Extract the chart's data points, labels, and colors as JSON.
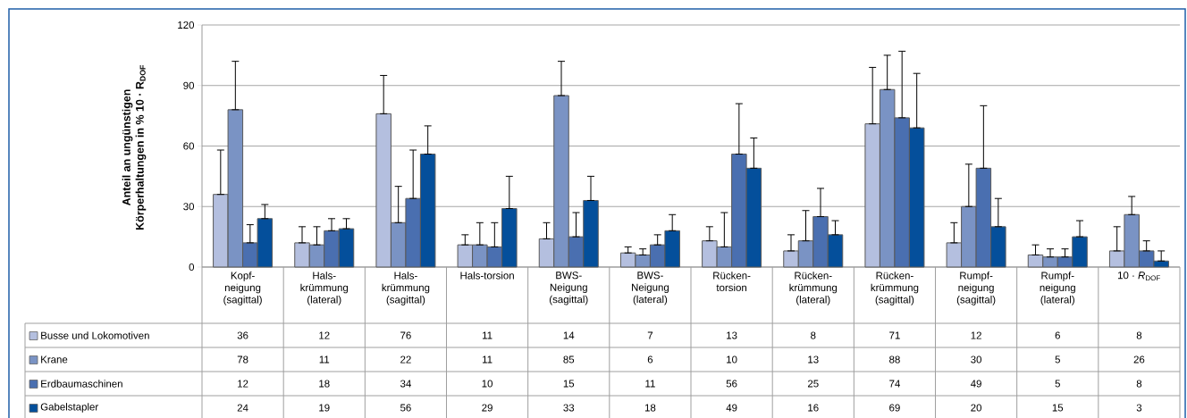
{
  "chart_data": {
    "type": "bar",
    "ylabel": "Anteil an ungünstigen Körperhaltungen in % 10 · R$_{DOF}$",
    "categories": [
      "Kopf-neigung (sagittal)",
      "Hals-krümmung (lateral)",
      "Hals-krümmung (sagittal)",
      "Hals-torsion",
      "BWS-Neigung (sagittal)",
      "BWS-Neigung (lateral)",
      "Rücken-torsion",
      "Rücken-krümmung (lateral)",
      "Rücken-krümmung (sagittal)",
      "Rumpf-neigung (sagittal)",
      "Rumpf-neigung (lateral)",
      "10 · *R*$_{DOF}$"
    ],
    "series": [
      {
        "name": "Busse und Lokomotiven",
        "color": "#b4bfdf",
        "values": [
          36,
          12,
          76,
          11,
          14,
          7,
          13,
          8,
          71,
          12,
          6,
          8
        ],
        "errors": [
          [
            36,
            58
          ],
          [
            12,
            20
          ],
          [
            76,
            95
          ],
          [
            11,
            16
          ],
          [
            14,
            22
          ],
          [
            7,
            10
          ],
          [
            13,
            20
          ],
          [
            8,
            16
          ],
          [
            71,
            99
          ],
          [
            12,
            22
          ],
          [
            6,
            11
          ],
          [
            8,
            20
          ]
        ]
      },
      {
        "name": "Krane",
        "color": "#7a93c4",
        "values": [
          78,
          11,
          22,
          11,
          85,
          6,
          10,
          13,
          88,
          30,
          5,
          26
        ],
        "errors": [
          [
            78,
            102
          ],
          [
            11,
            20
          ],
          [
            22,
            40
          ],
          [
            11,
            22
          ],
          [
            85,
            102
          ],
          [
            6,
            9
          ],
          [
            10,
            27
          ],
          [
            13,
            28
          ],
          [
            88,
            105
          ],
          [
            30,
            51
          ],
          [
            5,
            9
          ],
          [
            26,
            35
          ]
        ]
      },
      {
        "name": "Erdbaumaschinen",
        "color": "#4a6fb0",
        "values": [
          12,
          18,
          34,
          10,
          15,
          11,
          56,
          25,
          74,
          49,
          5,
          8
        ],
        "errors": [
          [
            12,
            21
          ],
          [
            18,
            24
          ],
          [
            34,
            58
          ],
          [
            10,
            22
          ],
          [
            15,
            27
          ],
          [
            11,
            16
          ],
          [
            56,
            81
          ],
          [
            25,
            39
          ],
          [
            74,
            107
          ],
          [
            49,
            80
          ],
          [
            5,
            9
          ],
          [
            8,
            13
          ]
        ]
      },
      {
        "name": "Gabelstapler",
        "color": "#044f9b",
        "values": [
          24,
          19,
          56,
          29,
          33,
          18,
          49,
          16,
          69,
          20,
          15,
          3
        ],
        "errors": [
          [
            24,
            31
          ],
          [
            19,
            24
          ],
          [
            56,
            70
          ],
          [
            29,
            45
          ],
          [
            33,
            45
          ],
          [
            18,
            26
          ],
          [
            49,
            64
          ],
          [
            16,
            23
          ],
          [
            69,
            96
          ],
          [
            20,
            34
          ],
          [
            15,
            23
          ],
          [
            3,
            8
          ]
        ]
      }
    ],
    "ylim": [
      0,
      120
    ],
    "yticks": [
      0,
      30,
      60,
      90,
      120
    ],
    "grid": "y",
    "legend": "bottom left",
    "data_labels": true
  }
}
